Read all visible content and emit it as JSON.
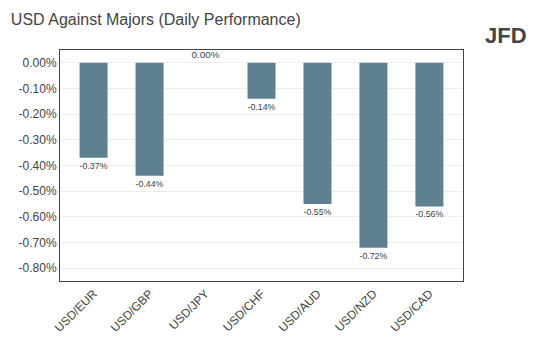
{
  "chart_data": {
    "type": "bar",
    "title": "USD Against Majors (Daily Performance)",
    "categories": [
      "USD/EUR",
      "USD/GBP",
      "USD/JPY",
      "USD/CHF",
      "USD/AUD",
      "USD/NZD",
      "USD/CAD"
    ],
    "values": [
      -0.37,
      -0.44,
      0.0,
      -0.14,
      -0.55,
      -0.72,
      -0.56
    ],
    "value_labels": [
      "-0.37%",
      "-0.44%",
      "0.00%",
      "-0.14%",
      "-0.55%",
      "-0.72%",
      "-0.56%"
    ],
    "data_labels": true,
    "color": "#5f8090",
    "ylim": [
      -0.85,
      0.05
    ],
    "yticks": [
      {
        "value": 0.0,
        "label": "0.00%"
      },
      {
        "value": -0.1,
        "label": "-0.10%"
      },
      {
        "value": -0.2,
        "label": "-0.20%"
      },
      {
        "value": -0.3,
        "label": "-0.30%"
      },
      {
        "value": -0.4,
        "label": "-0.40%"
      },
      {
        "value": -0.5,
        "label": "-0.50%"
      },
      {
        "value": -0.6,
        "label": "-0.60%"
      },
      {
        "value": -0.7,
        "label": "-0.70%"
      },
      {
        "value": -0.8,
        "label": "-0.80%"
      }
    ],
    "grid": true,
    "annotations": [
      "JFD"
    ]
  }
}
